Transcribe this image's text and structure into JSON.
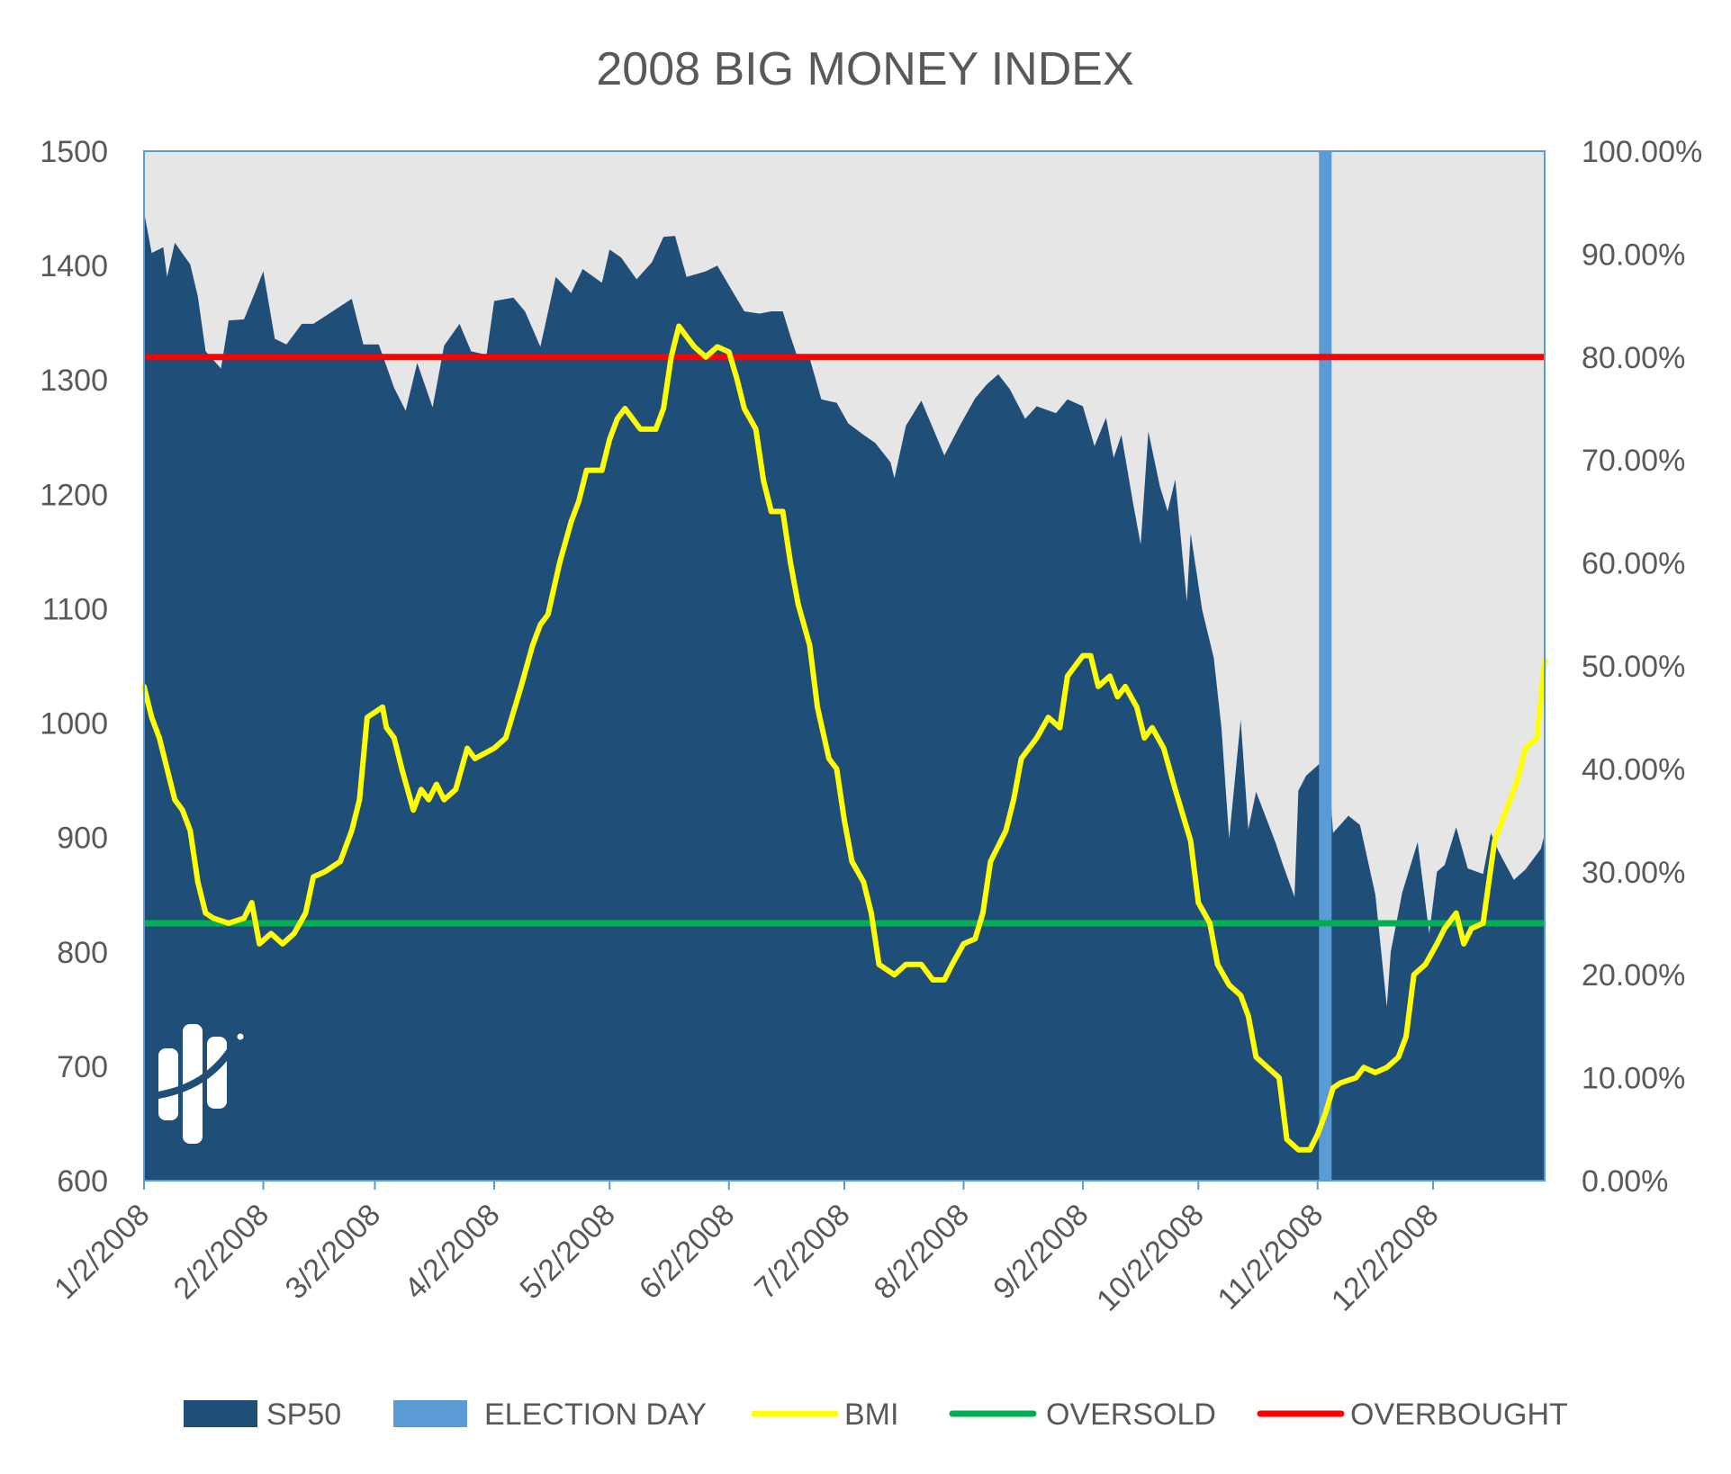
{
  "chart_data": {
    "type": "area",
    "title": "2008 BIG MONEY INDEX",
    "left_axis": {
      "ticks": [
        600,
        700,
        800,
        900,
        1000,
        1100,
        1200,
        1300,
        1400,
        1500
      ],
      "ylim": [
        600,
        1500
      ]
    },
    "right_axis": {
      "ticks": [
        "0.00%",
        "10.00%",
        "20.00%",
        "30.00%",
        "40.00%",
        "50.00%",
        "60.00%",
        "70.00%",
        "80.00%",
        "90.00%",
        "100.00%"
      ],
      "ylim": [
        0,
        100
      ]
    },
    "x_axis": {
      "min": "2008-01-02",
      "max": "2008-12-31",
      "ticks": [
        "1/2/2008",
        "2/2/2008",
        "3/2/2008",
        "4/2/2008",
        "5/2/2008",
        "6/2/2008",
        "7/2/2008",
        "8/2/2008",
        "9/2/2008",
        "10/2/2008",
        "11/2/2008",
        "12/2/2008"
      ]
    },
    "grid": false,
    "legend_position": "bottom",
    "series": [
      {
        "name": "SP50",
        "type": "area",
        "axis": "left",
        "color": "#1f4e79",
        "points": [
          [
            "2008-01-02",
            1447
          ],
          [
            "2008-01-04",
            1411
          ],
          [
            "2008-01-07",
            1416
          ],
          [
            "2008-01-08",
            1390
          ],
          [
            "2008-01-10",
            1420
          ],
          [
            "2008-01-14",
            1401
          ],
          [
            "2008-01-16",
            1373
          ],
          [
            "2008-01-18",
            1325
          ],
          [
            "2008-01-22",
            1310
          ],
          [
            "2008-01-24",
            1352
          ],
          [
            "2008-01-28",
            1353
          ],
          [
            "2008-01-31",
            1378
          ],
          [
            "2008-02-02",
            1395
          ],
          [
            "2008-02-05",
            1336
          ],
          [
            "2008-02-08",
            1331
          ],
          [
            "2008-02-12",
            1349
          ],
          [
            "2008-02-15",
            1349
          ],
          [
            "2008-02-20",
            1360
          ],
          [
            "2008-02-25",
            1371
          ],
          [
            "2008-02-28",
            1331
          ],
          [
            "2008-03-03",
            1331
          ],
          [
            "2008-03-07",
            1293
          ],
          [
            "2008-03-10",
            1273
          ],
          [
            "2008-03-13",
            1315
          ],
          [
            "2008-03-17",
            1276
          ],
          [
            "2008-03-20",
            1330
          ],
          [
            "2008-03-24",
            1349
          ],
          [
            "2008-03-27",
            1325
          ],
          [
            "2008-03-31",
            1322
          ],
          [
            "2008-04-02",
            1369
          ],
          [
            "2008-04-07",
            1372
          ],
          [
            "2008-04-10",
            1360
          ],
          [
            "2008-04-14",
            1329
          ],
          [
            "2008-04-18",
            1390
          ],
          [
            "2008-04-22",
            1376
          ],
          [
            "2008-04-25",
            1397
          ],
          [
            "2008-04-30",
            1385
          ],
          [
            "2008-05-02",
            1414
          ],
          [
            "2008-05-05",
            1407
          ],
          [
            "2008-05-09",
            1388
          ],
          [
            "2008-05-13",
            1403
          ],
          [
            "2008-05-16",
            1425
          ],
          [
            "2008-05-19",
            1426
          ],
          [
            "2008-05-22",
            1390
          ],
          [
            "2008-05-27",
            1395
          ],
          [
            "2008-05-30",
            1400
          ],
          [
            "2008-06-03",
            1377
          ],
          [
            "2008-06-06",
            1360
          ],
          [
            "2008-06-10",
            1358
          ],
          [
            "2008-06-13",
            1360
          ],
          [
            "2008-06-16",
            1360
          ],
          [
            "2008-06-18",
            1338
          ],
          [
            "2008-06-20",
            1318
          ],
          [
            "2008-06-23",
            1319
          ],
          [
            "2008-06-26",
            1283
          ],
          [
            "2008-06-30",
            1280
          ],
          [
            "2008-07-03",
            1262
          ],
          [
            "2008-07-07",
            1252
          ],
          [
            "2008-07-10",
            1245
          ],
          [
            "2008-07-14",
            1228
          ],
          [
            "2008-07-15",
            1214
          ],
          [
            "2008-07-18",
            1260
          ],
          [
            "2008-07-22",
            1282
          ],
          [
            "2008-07-25",
            1258
          ],
          [
            "2008-07-28",
            1234
          ],
          [
            "2008-08-01",
            1260
          ],
          [
            "2008-08-05",
            1284
          ],
          [
            "2008-08-08",
            1296
          ],
          [
            "2008-08-11",
            1305
          ],
          [
            "2008-08-14",
            1292
          ],
          [
            "2008-08-18",
            1266
          ],
          [
            "2008-08-21",
            1277
          ],
          [
            "2008-08-26",
            1271
          ],
          [
            "2008-08-29",
            1283
          ],
          [
            "2008-09-02",
            1277
          ],
          [
            "2008-09-05",
            1242
          ],
          [
            "2008-09-08",
            1267
          ],
          [
            "2008-09-10",
            1232
          ],
          [
            "2008-09-12",
            1252
          ],
          [
            "2008-09-15",
            1193
          ],
          [
            "2008-09-17",
            1156
          ],
          [
            "2008-09-19",
            1255
          ],
          [
            "2008-09-22",
            1207
          ],
          [
            "2008-09-24",
            1185
          ],
          [
            "2008-09-26",
            1213
          ],
          [
            "2008-09-29",
            1106
          ],
          [
            "2008-09-30",
            1166
          ],
          [
            "2008-10-03",
            1099
          ],
          [
            "2008-10-06",
            1057
          ],
          [
            "2008-10-08",
            996
          ],
          [
            "2008-10-10",
            899
          ],
          [
            "2008-10-13",
            1003
          ],
          [
            "2008-10-15",
            907
          ],
          [
            "2008-10-17",
            940
          ],
          [
            "2008-10-22",
            896
          ],
          [
            "2008-10-24",
            876
          ],
          [
            "2008-10-27",
            848
          ],
          [
            "2008-10-28",
            941
          ],
          [
            "2008-10-30",
            954
          ],
          [
            "2008-11-03",
            966
          ],
          [
            "2008-11-04",
            1005
          ],
          [
            "2008-11-06",
            904
          ],
          [
            "2008-11-10",
            919
          ],
          [
            "2008-11-13",
            911
          ],
          [
            "2008-11-17",
            850
          ],
          [
            "2008-11-20",
            752
          ],
          [
            "2008-11-21",
            800
          ],
          [
            "2008-11-24",
            852
          ],
          [
            "2008-11-28",
            896
          ],
          [
            "2008-12-01",
            816
          ],
          [
            "2008-12-03",
            870
          ],
          [
            "2008-12-05",
            876
          ],
          [
            "2008-12-08",
            909
          ],
          [
            "2008-12-11",
            873
          ],
          [
            "2008-12-15",
            868
          ],
          [
            "2008-12-17",
            904
          ],
          [
            "2008-12-19",
            888
          ],
          [
            "2008-12-23",
            863
          ],
          [
            "2008-12-26",
            872
          ],
          [
            "2008-12-30",
            890
          ],
          [
            "2008-12-31",
            903
          ]
        ]
      },
      {
        "name": "ELECTION DAY",
        "type": "vline",
        "color": "#5b9bd5",
        "x": "2008-11-04"
      },
      {
        "name": "BMI",
        "type": "line",
        "axis": "right",
        "color": "#ffff00",
        "points": [
          [
            "2008-01-02",
            48
          ],
          [
            "2008-01-04",
            45
          ],
          [
            "2008-01-06",
            43
          ],
          [
            "2008-01-08",
            40
          ],
          [
            "2008-01-10",
            37
          ],
          [
            "2008-01-12",
            36
          ],
          [
            "2008-01-14",
            34
          ],
          [
            "2008-01-16",
            29
          ],
          [
            "2008-01-18",
            26
          ],
          [
            "2008-01-20",
            25.5
          ],
          [
            "2008-01-24",
            25
          ],
          [
            "2008-01-28",
            25.5
          ],
          [
            "2008-01-30",
            27
          ],
          [
            "2008-02-01",
            23
          ],
          [
            "2008-02-04",
            24
          ],
          [
            "2008-02-07",
            23
          ],
          [
            "2008-02-10",
            24
          ],
          [
            "2008-02-13",
            26
          ],
          [
            "2008-02-15",
            29.5
          ],
          [
            "2008-02-18",
            30
          ],
          [
            "2008-02-22",
            31
          ],
          [
            "2008-02-25",
            34
          ],
          [
            "2008-02-27",
            37
          ],
          [
            "2008-02-29",
            45
          ],
          [
            "2008-03-02",
            45.5
          ],
          [
            "2008-03-04",
            46
          ],
          [
            "2008-03-05",
            44
          ],
          [
            "2008-03-07",
            43
          ],
          [
            "2008-03-09",
            40
          ],
          [
            "2008-03-12",
            36
          ],
          [
            "2008-03-14",
            38
          ],
          [
            "2008-03-16",
            37
          ],
          [
            "2008-03-18",
            38.5
          ],
          [
            "2008-03-20",
            37
          ],
          [
            "2008-03-23",
            38
          ],
          [
            "2008-03-26",
            42
          ],
          [
            "2008-03-28",
            41
          ],
          [
            "2008-04-02",
            42
          ],
          [
            "2008-04-05",
            43
          ],
          [
            "2008-04-09",
            48
          ],
          [
            "2008-04-12",
            52
          ],
          [
            "2008-04-14",
            54
          ],
          [
            "2008-04-16",
            55
          ],
          [
            "2008-04-19",
            60
          ],
          [
            "2008-04-22",
            64
          ],
          [
            "2008-04-24",
            66
          ],
          [
            "2008-04-26",
            69
          ],
          [
            "2008-04-30",
            69
          ],
          [
            "2008-05-02",
            72
          ],
          [
            "2008-05-04",
            74
          ],
          [
            "2008-05-06",
            75
          ],
          [
            "2008-05-08",
            74
          ],
          [
            "2008-05-10",
            73
          ],
          [
            "2008-05-14",
            73
          ],
          [
            "2008-05-16",
            75
          ],
          [
            "2008-05-18",
            80
          ],
          [
            "2008-05-20",
            83
          ],
          [
            "2008-05-22",
            82
          ],
          [
            "2008-05-24",
            81
          ],
          [
            "2008-05-27",
            80
          ],
          [
            "2008-05-30",
            81
          ],
          [
            "2008-06-02",
            80.5
          ],
          [
            "2008-06-04",
            78
          ],
          [
            "2008-06-06",
            75
          ],
          [
            "2008-06-09",
            73
          ],
          [
            "2008-06-11",
            68
          ],
          [
            "2008-06-13",
            65
          ],
          [
            "2008-06-16",
            65
          ],
          [
            "2008-06-18",
            60
          ],
          [
            "2008-06-20",
            56
          ],
          [
            "2008-06-23",
            52
          ],
          [
            "2008-06-25",
            46
          ],
          [
            "2008-06-28",
            41
          ],
          [
            "2008-06-30",
            40
          ],
          [
            "2008-07-02",
            35
          ],
          [
            "2008-07-04",
            31
          ],
          [
            "2008-07-07",
            29
          ],
          [
            "2008-07-09",
            26
          ],
          [
            "2008-07-11",
            21
          ],
          [
            "2008-07-15",
            20
          ],
          [
            "2008-07-18",
            21
          ],
          [
            "2008-07-22",
            21
          ],
          [
            "2008-07-25",
            19.5
          ],
          [
            "2008-07-28",
            19.5
          ],
          [
            "2008-07-30",
            21
          ],
          [
            "2008-08-02",
            23
          ],
          [
            "2008-08-05",
            23.5
          ],
          [
            "2008-08-07",
            26
          ],
          [
            "2008-08-09",
            31
          ],
          [
            "2008-08-13",
            34
          ],
          [
            "2008-08-15",
            37
          ],
          [
            "2008-08-17",
            41
          ],
          [
            "2008-08-21",
            43
          ],
          [
            "2008-08-24",
            45
          ],
          [
            "2008-08-27",
            44
          ],
          [
            "2008-08-29",
            49
          ],
          [
            "2008-09-02",
            51
          ],
          [
            "2008-09-04",
            51
          ],
          [
            "2008-09-06",
            48
          ],
          [
            "2008-09-09",
            49
          ],
          [
            "2008-09-11",
            47
          ],
          [
            "2008-09-13",
            48
          ],
          [
            "2008-09-16",
            46
          ],
          [
            "2008-09-18",
            43
          ],
          [
            "2008-09-20",
            44
          ],
          [
            "2008-09-23",
            42
          ],
          [
            "2008-09-26",
            38
          ],
          [
            "2008-09-30",
            33
          ],
          [
            "2008-10-02",
            27
          ],
          [
            "2008-10-05",
            25
          ],
          [
            "2008-10-07",
            21
          ],
          [
            "2008-10-10",
            19
          ],
          [
            "2008-10-13",
            18
          ],
          [
            "2008-10-15",
            16
          ],
          [
            "2008-10-17",
            12
          ],
          [
            "2008-10-20",
            11
          ],
          [
            "2008-10-23",
            10
          ],
          [
            "2008-10-25",
            4
          ],
          [
            "2008-10-28",
            3
          ],
          [
            "2008-10-31",
            3
          ],
          [
            "2008-11-02",
            4.5
          ],
          [
            "2008-11-04",
            6.5
          ],
          [
            "2008-11-06",
            9
          ],
          [
            "2008-11-08",
            9.5
          ],
          [
            "2008-11-12",
            10
          ],
          [
            "2008-11-14",
            11
          ],
          [
            "2008-11-17",
            10.5
          ],
          [
            "2008-11-20",
            11
          ],
          [
            "2008-11-23",
            12
          ],
          [
            "2008-11-25",
            14
          ],
          [
            "2008-11-27",
            20
          ],
          [
            "2008-11-30",
            21
          ],
          [
            "2008-12-03",
            23
          ],
          [
            "2008-12-05",
            24.5
          ],
          [
            "2008-12-08",
            26
          ],
          [
            "2008-12-10",
            23
          ],
          [
            "2008-12-12",
            24.5
          ],
          [
            "2008-12-15",
            25
          ],
          [
            "2008-12-18",
            33
          ],
          [
            "2008-12-21",
            36
          ],
          [
            "2008-12-24",
            39
          ],
          [
            "2008-12-26",
            42
          ],
          [
            "2008-12-29",
            43
          ],
          [
            "2008-12-31",
            50.5
          ]
        ]
      },
      {
        "name": "OVERSOLD",
        "type": "hline",
        "axis": "right",
        "color": "#00b050",
        "y": 25
      },
      {
        "name": "OVERBOUGHT",
        "type": "hline",
        "axis": "right",
        "color": "#ff0000",
        "y": 80
      }
    ],
    "legend": [
      "SP50",
      "ELECTION DAY",
      "BMI",
      "OVERSOLD",
      "OVERBOUGHT"
    ]
  }
}
